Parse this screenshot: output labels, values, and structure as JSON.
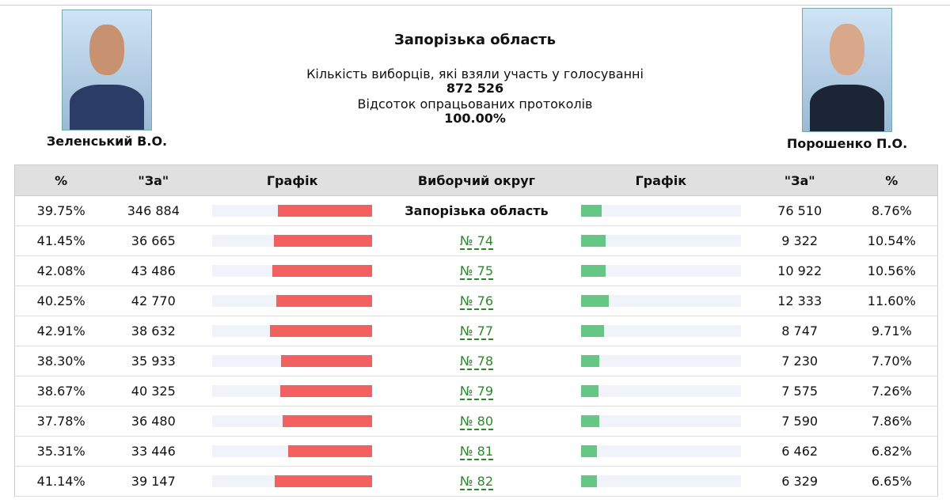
{
  "header": {
    "region": "Запорізька область",
    "turnout_label": "Кількість виборців, які взяли участь у голосуванні",
    "turnout": "872 526",
    "processed_label": "Відсоток опрацьованих протоколів",
    "processed": "100.00%"
  },
  "candidates": [
    {
      "name": "Зеленський В.О."
    },
    {
      "name": "Порошенко П.О."
    }
  ],
  "table": {
    "columns": [
      "%",
      "\"За\"",
      "Графік",
      "Виборчий округ",
      "Графік",
      "\"За\"",
      "%"
    ],
    "rows": [
      {
        "left_pct": {
          "value": 39.75,
          "label": "39.75%"
        },
        "left_votes": "346 884",
        "district": "Запорізька область",
        "right_votes": "76 510",
        "right_pct": {
          "value": 8.76,
          "label": "8.76%"
        }
      },
      {
        "left_pct": {
          "value": 41.45,
          "label": "41.45%"
        },
        "left_votes": "36 665",
        "district": "№ 74",
        "right_votes": "9 322",
        "right_pct": {
          "value": 10.54,
          "label": "10.54%"
        }
      },
      {
        "left_pct": {
          "value": 42.08,
          "label": "42.08%"
        },
        "left_votes": "43 486",
        "district": "№ 75",
        "right_votes": "10 922",
        "right_pct": {
          "value": 10.56,
          "label": "10.56%"
        }
      },
      {
        "left_pct": {
          "value": 40.25,
          "label": "40.25%"
        },
        "left_votes": "42 770",
        "district": "№ 76",
        "right_votes": "12 333",
        "right_pct": {
          "value": 11.6,
          "label": "11.60%"
        }
      },
      {
        "left_pct": {
          "value": 42.91,
          "label": "42.91%"
        },
        "left_votes": "38 632",
        "district": "№ 77",
        "right_votes": "8 747",
        "right_pct": {
          "value": 9.71,
          "label": "9.71%"
        }
      },
      {
        "left_pct": {
          "value": 38.3,
          "label": "38.30%"
        },
        "left_votes": "35 933",
        "district": "№ 78",
        "right_votes": "7 230",
        "right_pct": {
          "value": 7.7,
          "label": "7.70%"
        }
      },
      {
        "left_pct": {
          "value": 38.67,
          "label": "38.67%"
        },
        "left_votes": "40 325",
        "district": "№ 79",
        "right_votes": "7 575",
        "right_pct": {
          "value": 7.26,
          "label": "7.26%"
        }
      },
      {
        "left_pct": {
          "value": 37.78,
          "label": "37.78%"
        },
        "left_votes": "36 480",
        "district": "№ 80",
        "right_votes": "7 590",
        "right_pct": {
          "value": 7.86,
          "label": "7.86%"
        }
      },
      {
        "left_pct": {
          "value": 35.31,
          "label": "35.31%"
        },
        "left_votes": "33 446",
        "district": "№ 81",
        "right_votes": "6 462",
        "right_pct": {
          "value": 6.82,
          "label": "6.82%"
        }
      },
      {
        "left_pct": {
          "value": 41.14,
          "label": "41.14%"
        },
        "left_votes": "39 147",
        "district": "№ 82",
        "right_votes": "6 329",
        "right_pct": {
          "value": 6.65,
          "label": "6.65%"
        }
      }
    ]
  }
}
